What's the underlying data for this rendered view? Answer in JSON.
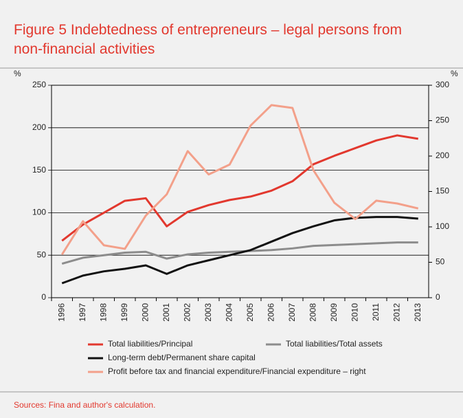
{
  "chart_data": {
    "type": "line",
    "title": "Figure 5 Indebtedness of entrepreneurs – legal persons from non-financial activities",
    "ylabel": "%",
    "y2label": "%",
    "categories": [
      "1996",
      "1997",
      "1998",
      "1999",
      "2000",
      "2001",
      "2002",
      "2003",
      "2004",
      "2005",
      "2006",
      "2007",
      "2008",
      "2009",
      "2010",
      "2011",
      "2012",
      "2013"
    ],
    "series": [
      {
        "name": "Total liabilities/Principal",
        "color": "#e2382e",
        "values": [
          67,
          86,
          100,
          114,
          117,
          84,
          101,
          109,
          115,
          119,
          126,
          137,
          157,
          167,
          176,
          185,
          191,
          187
        ]
      },
      {
        "name": "Total liabilities/Total assets",
        "color": "#8c8c8c",
        "values": [
          40,
          47,
          50,
          53,
          54,
          46,
          51,
          53,
          54,
          55,
          56,
          58,
          61,
          62,
          63,
          64,
          65,
          65
        ]
      },
      {
        "name": "Long-term debt/Permanent share capital",
        "color": "#111111",
        "values": [
          17,
          26,
          31,
          34,
          38,
          28,
          38,
          44,
          50,
          56,
          66,
          76,
          84,
          91,
          94,
          95,
          95,
          93
        ]
      },
      {
        "name": "Profit before tax and financial expenditure/Financial expenditure – right",
        "color": "#f3a08a",
        "axis": "y2",
        "values": [
          61,
          108,
          74,
          69,
          116,
          146,
          207,
          174,
          188,
          243,
          272,
          268,
          180,
          134,
          111,
          137,
          133,
          126
        ]
      }
    ],
    "ylim": [
      0,
      250
    ],
    "yticks": [
      0,
      50,
      100,
      150,
      200,
      250
    ],
    "y2lim": [
      0,
      300
    ],
    "y2ticks": [
      0,
      50,
      100,
      150,
      200,
      250,
      300
    ],
    "grid": true,
    "source": "Sources: Fina and author's calculation."
  }
}
